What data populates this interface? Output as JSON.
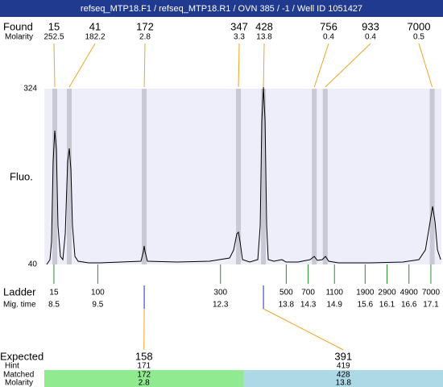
{
  "title": "refseq_MTP18.F1 / refseq_MTP18.R1 / OVN 385 / -1 / Well ID 1051427",
  "found": {
    "label": "Found",
    "molarity_label": "Molarity",
    "peaks": [
      {
        "size": 15,
        "molarity": 252.5,
        "time": 8.52
      },
      {
        "size": 41,
        "molarity": 182.2,
        "time": 8.85
      },
      {
        "size": 172,
        "molarity": 2.8,
        "time": 10.56
      },
      {
        "size": 347,
        "molarity": 3.3,
        "time": 12.71
      },
      {
        "size": 428,
        "molarity": 13.8,
        "time": 13.28
      },
      {
        "size": 756,
        "molarity": 0.4,
        "time": 14.44
      },
      {
        "size": 933,
        "molarity": 0.4,
        "time": 14.69
      },
      {
        "size": 7000,
        "molarity": 0.5,
        "time": 17.13
      }
    ]
  },
  "chart_data": {
    "type": "line",
    "y_label": "Fluo.",
    "xlim": [
      8.28,
      17.34
    ],
    "ylim": [
      40,
      324
    ],
    "yticks": [
      40,
      324
    ],
    "x": [
      8.335,
      8.409,
      8.445,
      8.482,
      8.519,
      8.556,
      8.592,
      8.648,
      8.703,
      8.758,
      8.813,
      8.85,
      8.887,
      8.923,
      8.979,
      9.052,
      9.291,
      9.567,
      10.026,
      10.486,
      10.541,
      10.559,
      10.578,
      10.633,
      11.313,
      12.048,
      12.508,
      12.6,
      12.673,
      12.71,
      12.747,
      12.802,
      12.967,
      13.151,
      13.206,
      13.243,
      13.28,
      13.317,
      13.353,
      13.39,
      13.519,
      13.703,
      13.795,
      14.071,
      14.346,
      14.438,
      14.512,
      14.622,
      14.696,
      14.769,
      14.99,
      15.725,
      16.46,
      16.828,
      16.975,
      17.067,
      17.14,
      17.195,
      17.251,
      17.324
    ],
    "values": [
      40,
      47.8,
      76.5,
      206.7,
      256.3,
      226.3,
      102.5,
      53,
      47.8,
      89.5,
      206.7,
      227.6,
      193.7,
      102.5,
      53,
      45.2,
      42.6,
      42.6,
      43.9,
      45.2,
      60.8,
      70,
      60.8,
      45.2,
      43.9,
      45.2,
      50.4,
      63.4,
      89.5,
      92.1,
      76.5,
      47.8,
      43.9,
      47.8,
      102.5,
      271.9,
      326.6,
      271.9,
      102.5,
      47.8,
      45.2,
      47.8,
      43.9,
      43.9,
      47.8,
      53,
      46.5,
      47.8,
      53,
      45.2,
      42.6,
      42.6,
      43.9,
      47.8,
      63.4,
      102.5,
      133.8,
      109,
      63.4,
      47.8
    ]
  },
  "ladder": {
    "label": "Ladder",
    "time_label": "Mig. time",
    "sizes": [
      15,
      100,
      300,
      500,
      700,
      1100,
      1900,
      2900,
      4900,
      7000
    ],
    "times": [
      8.5,
      9.5,
      12.3,
      13.8,
      14.3,
      14.9,
      15.6,
      16.1,
      16.6,
      17.1
    ]
  },
  "expected": {
    "label": "Expected",
    "hint_label": "Hint",
    "matched_label": "Matched",
    "molarity_label": "Molarity",
    "items": [
      {
        "expected": 158,
        "hint": 171,
        "matched": 172,
        "molarity": 2.8
      },
      {
        "expected": 391,
        "hint": 419,
        "matched": 428,
        "molarity": 13.8
      }
    ]
  }
}
